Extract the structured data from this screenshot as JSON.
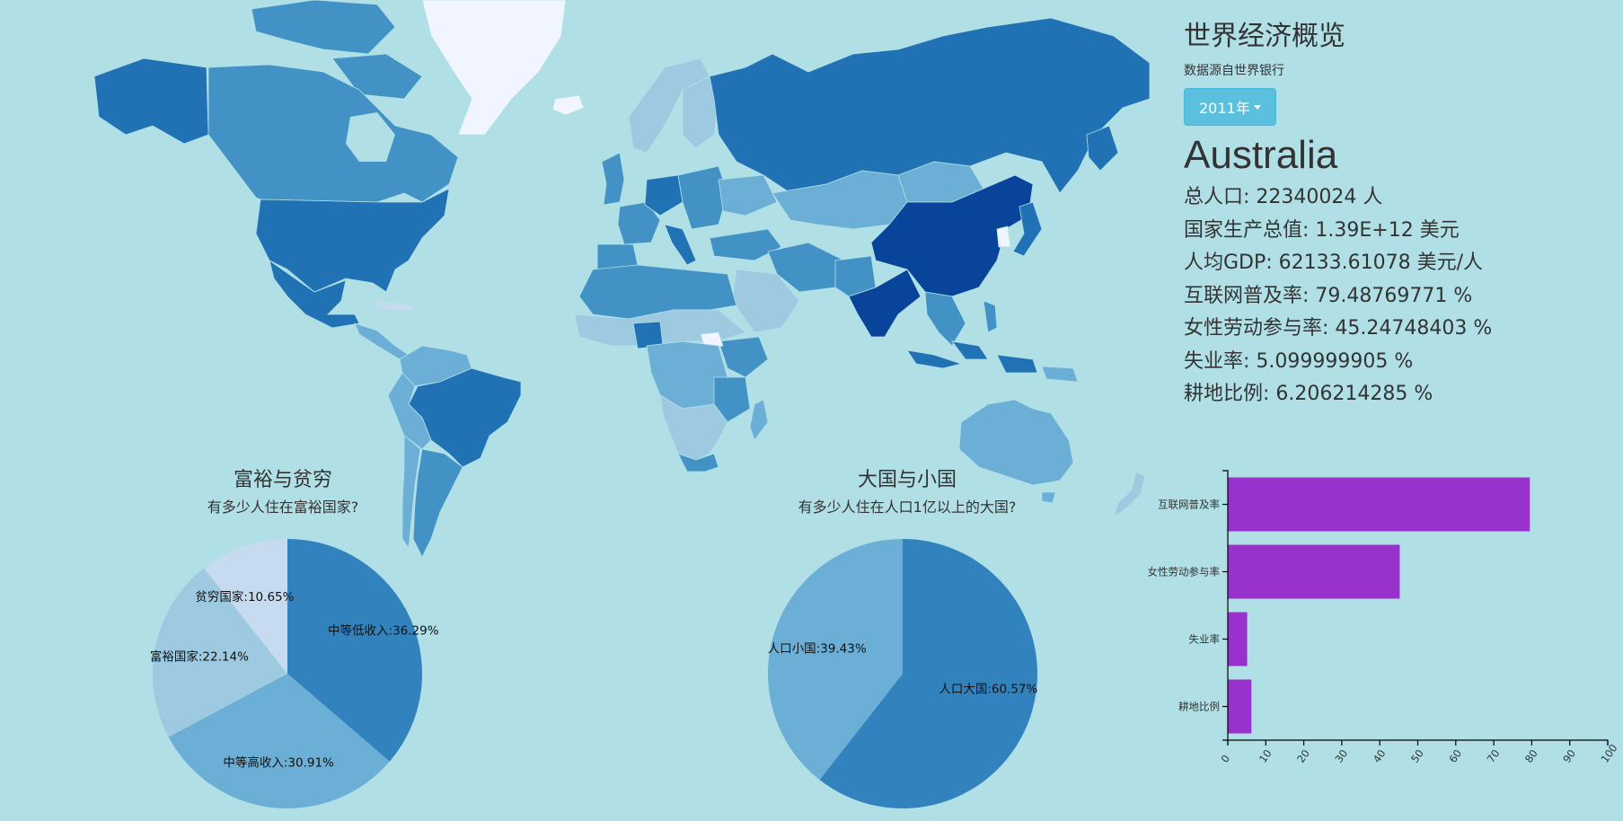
{
  "header": {
    "title": "世界经济概览",
    "subtitle": "数据源自世界银行",
    "year_label": "2011年"
  },
  "country": {
    "name": "Australia",
    "stats": [
      "总人口: 22340024 人",
      "国家生产总值: 1.39E+12 美元",
      "人均GDP: 62133.61078 美元/人",
      "互联网普及率: 79.48769771 %",
      "女性劳动参与率: 45.24748403 %",
      "失业率: 5.099999905 %",
      "耕地比例: 6.206214285 %"
    ]
  },
  "colors": {
    "background": "#b0e0e6",
    "bar": "#9932cc",
    "button": "#5bc0de",
    "map_shades": [
      "#f0f5ff",
      "#c6dbef",
      "#9ecae1",
      "#6baed6",
      "#4292c6",
      "#2171b5",
      "#08459a"
    ]
  },
  "chart_data": [
    {
      "type": "pie",
      "title": "富裕与贫穷",
      "subtitle": "有多少人住在富裕国家?",
      "slices": [
        {
          "label": "中等低收入:36.29%",
          "value": 36.29,
          "color": "#3182bd"
        },
        {
          "label": "中等高收入:30.91%",
          "value": 30.91,
          "color": "#6baed6"
        },
        {
          "label": "富裕国家:22.14%",
          "value": 22.14,
          "color": "#9ecae1"
        },
        {
          "label": "贫穷国家:10.65%",
          "value": 10.65,
          "color": "#c6dbef"
        }
      ]
    },
    {
      "type": "pie",
      "title": "大国与小国",
      "subtitle": "有多少人住在人口1亿以上的大国?",
      "slices": [
        {
          "label": "人口大国:60.57%",
          "value": 60.57,
          "color": "#3182bd"
        },
        {
          "label": "人口小国:39.43%",
          "value": 39.43,
          "color": "#6baed6"
        }
      ]
    },
    {
      "type": "bar",
      "orientation": "horizontal",
      "categories": [
        "互联网普及率",
        "女性劳动参与率",
        "失业率",
        "耕地比例"
      ],
      "values": [
        79.49,
        45.25,
        5.1,
        6.21
      ],
      "xlim": [
        0,
        100
      ],
      "xticks": [
        "0",
        "10",
        "20",
        "30",
        "40",
        "50",
        "60",
        "70",
        "80",
        "90",
        "100"
      ]
    }
  ]
}
